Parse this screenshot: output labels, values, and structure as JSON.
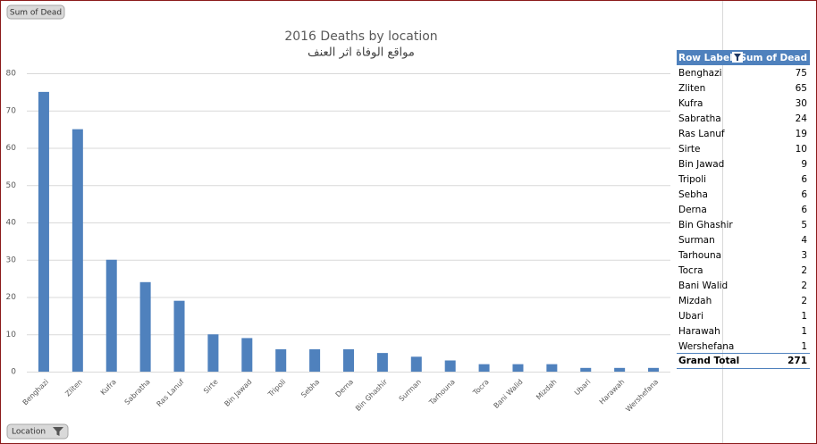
{
  "chart_data": {
    "type": "bar",
    "title": "2016 Deaths by location",
    "subtitle": "مواقع الوفاة اثر العنف",
    "categories": [
      "Benghazi",
      "Zliten",
      "Kufra",
      "Sabratha",
      "Ras Lanuf",
      "Sirte",
      "Bin Jawad",
      "Tripoli",
      "Sebha",
      "Derna",
      "Bin Ghashir",
      "Surman",
      "Tarhouna",
      "Tocra",
      "Bani Walid",
      "Mizdah",
      "Ubari",
      "Harawah",
      "Wershefana"
    ],
    "values": [
      75,
      65,
      30,
      24,
      19,
      10,
      9,
      6,
      6,
      6,
      5,
      4,
      3,
      2,
      2,
      2,
      1,
      1,
      1
    ],
    "color": "#4f81bd",
    "ylim": [
      0,
      80
    ],
    "yticks": [
      0,
      10,
      20,
      30,
      40,
      50,
      60,
      70,
      80
    ],
    "grid": true
  },
  "buttons": {
    "value_field": "Sum of Dead",
    "axis_field": "Location"
  },
  "pivot_table": {
    "row_header": "Row Labels",
    "value_header": "Sum of Dead",
    "total_label": "Grand Total",
    "total_value": 271
  }
}
